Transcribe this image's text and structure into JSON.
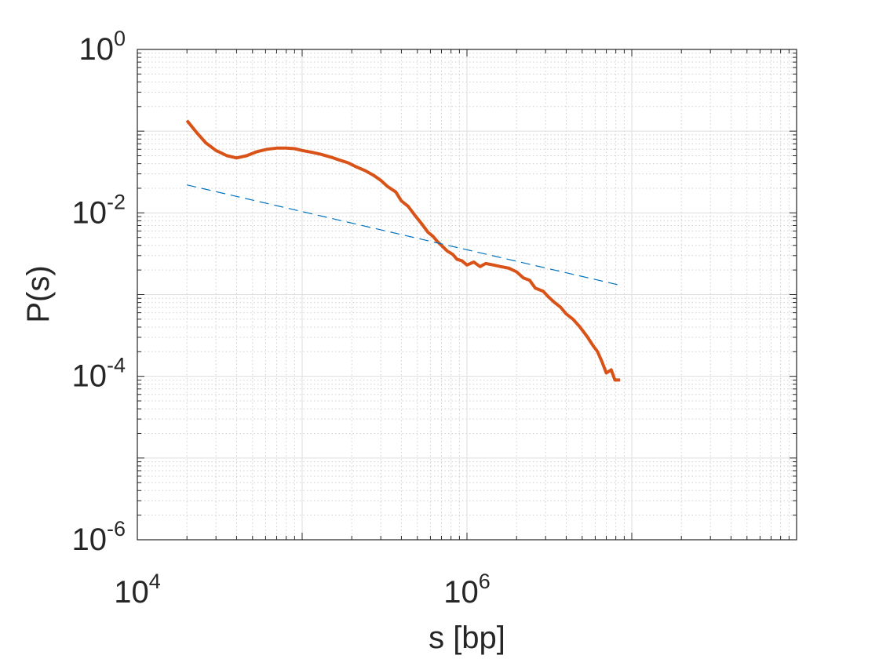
{
  "chart_data": {
    "type": "line",
    "title": "",
    "xlabel": "s [bp]",
    "ylabel": "P(s)",
    "xscale": "log",
    "yscale": "log",
    "xlim": [
      10000,
      100000000
    ],
    "ylim": [
      1e-06,
      1
    ],
    "grid": true,
    "x_ticks": [
      {
        "value": 10000,
        "base": "10",
        "exp": "4"
      },
      {
        "value": 1000000,
        "base": "10",
        "exp": "6"
      }
    ],
    "y_ticks": [
      {
        "value": 1,
        "base": "10",
        "exp": "0"
      },
      {
        "value": 0.01,
        "base": "10",
        "exp": "-2"
      },
      {
        "value": 0.0001,
        "base": "10",
        "exp": "-4"
      },
      {
        "value": 1e-06,
        "base": "10",
        "exp": "-6"
      }
    ],
    "series": [
      {
        "style": "solid",
        "color": "#D95319",
        "points": [
          [
            20000,
            0.135
          ],
          [
            23000,
            0.095
          ],
          [
            26000,
            0.072
          ],
          [
            30000,
            0.058
          ],
          [
            35000,
            0.05
          ],
          [
            40000,
            0.047
          ],
          [
            46000,
            0.05
          ],
          [
            53000,
            0.056
          ],
          [
            61000,
            0.06
          ],
          [
            70000,
            0.062
          ],
          [
            80000,
            0.062
          ],
          [
            90000,
            0.061
          ],
          [
            100000,
            0.058
          ],
          [
            115000,
            0.055
          ],
          [
            130000,
            0.052
          ],
          [
            150000,
            0.048
          ],
          [
            170000,
            0.044
          ],
          [
            190000,
            0.041
          ],
          [
            210000,
            0.037
          ],
          [
            240000,
            0.033
          ],
          [
            270000,
            0.029
          ],
          [
            300000,
            0.025
          ],
          [
            330000,
            0.021
          ],
          [
            370000,
            0.018
          ],
          [
            400000,
            0.014
          ],
          [
            440000,
            0.012
          ],
          [
            480000,
            0.0095
          ],
          [
            530000,
            0.0074
          ],
          [
            580000,
            0.0058
          ],
          [
            620000,
            0.0052
          ],
          [
            660000,
            0.0045
          ],
          [
            700000,
            0.004
          ],
          [
            760000,
            0.0034
          ],
          [
            820000,
            0.0031
          ],
          [
            870000,
            0.0027
          ],
          [
            930000,
            0.0026
          ],
          [
            1000000,
            0.0023
          ],
          [
            1100000,
            0.0025
          ],
          [
            1200000,
            0.0022
          ],
          [
            1300000,
            0.0024
          ],
          [
            1450000,
            0.0023
          ],
          [
            1600000,
            0.0022
          ],
          [
            1800000,
            0.0021
          ],
          [
            2000000,
            0.0019
          ],
          [
            2200000,
            0.0016
          ],
          [
            2400000,
            0.0015
          ],
          [
            2600000,
            0.0012
          ],
          [
            2900000,
            0.0011
          ],
          [
            3100000,
            0.00095
          ],
          [
            3400000,
            0.0008
          ],
          [
            3700000,
            0.0007
          ],
          [
            4000000,
            0.00058
          ],
          [
            4400000,
            0.0005
          ],
          [
            4800000,
            0.00041
          ],
          [
            5100000,
            0.00035
          ],
          [
            5400000,
            0.0003
          ],
          [
            5800000,
            0.00024
          ],
          [
            6200000,
            0.0002
          ],
          [
            6600000,
            0.00015
          ],
          [
            7000000,
            0.00011
          ],
          [
            7500000,
            0.00012
          ],
          [
            7900000,
            9e-05
          ],
          [
            8500000,
            9e-05
          ]
        ]
      },
      {
        "style": "dashed",
        "color": "#0072BD",
        "points": [
          [
            20000,
            0.022
          ],
          [
            8500000,
            0.0013
          ]
        ]
      }
    ]
  }
}
